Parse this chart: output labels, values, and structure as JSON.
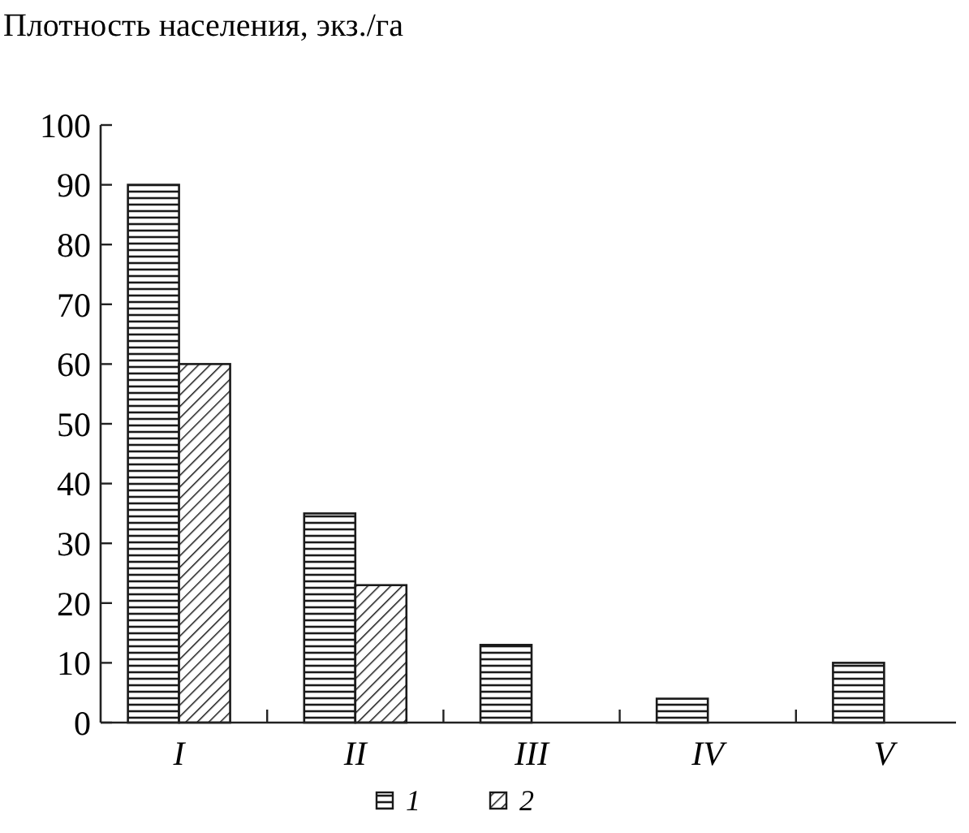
{
  "chart_data": {
    "type": "bar",
    "ylabel": "Плотность населения, экз./га",
    "categories": [
      "I",
      "II",
      "III",
      "IV",
      "V"
    ],
    "series": [
      {
        "name": "1",
        "color": "#1a1a1a",
        "values": [
          90,
          35,
          13,
          4,
          10
        ]
      },
      {
        "name": "2",
        "color": "#1a1a1a",
        "values": [
          60,
          23,
          null,
          null,
          null
        ]
      }
    ],
    "ylim": [
      0,
      100
    ],
    "yticks": [
      0,
      10,
      20,
      30,
      40,
      50,
      60,
      70,
      80,
      90,
      100
    ],
    "grid": false,
    "legend": "bottom"
  }
}
